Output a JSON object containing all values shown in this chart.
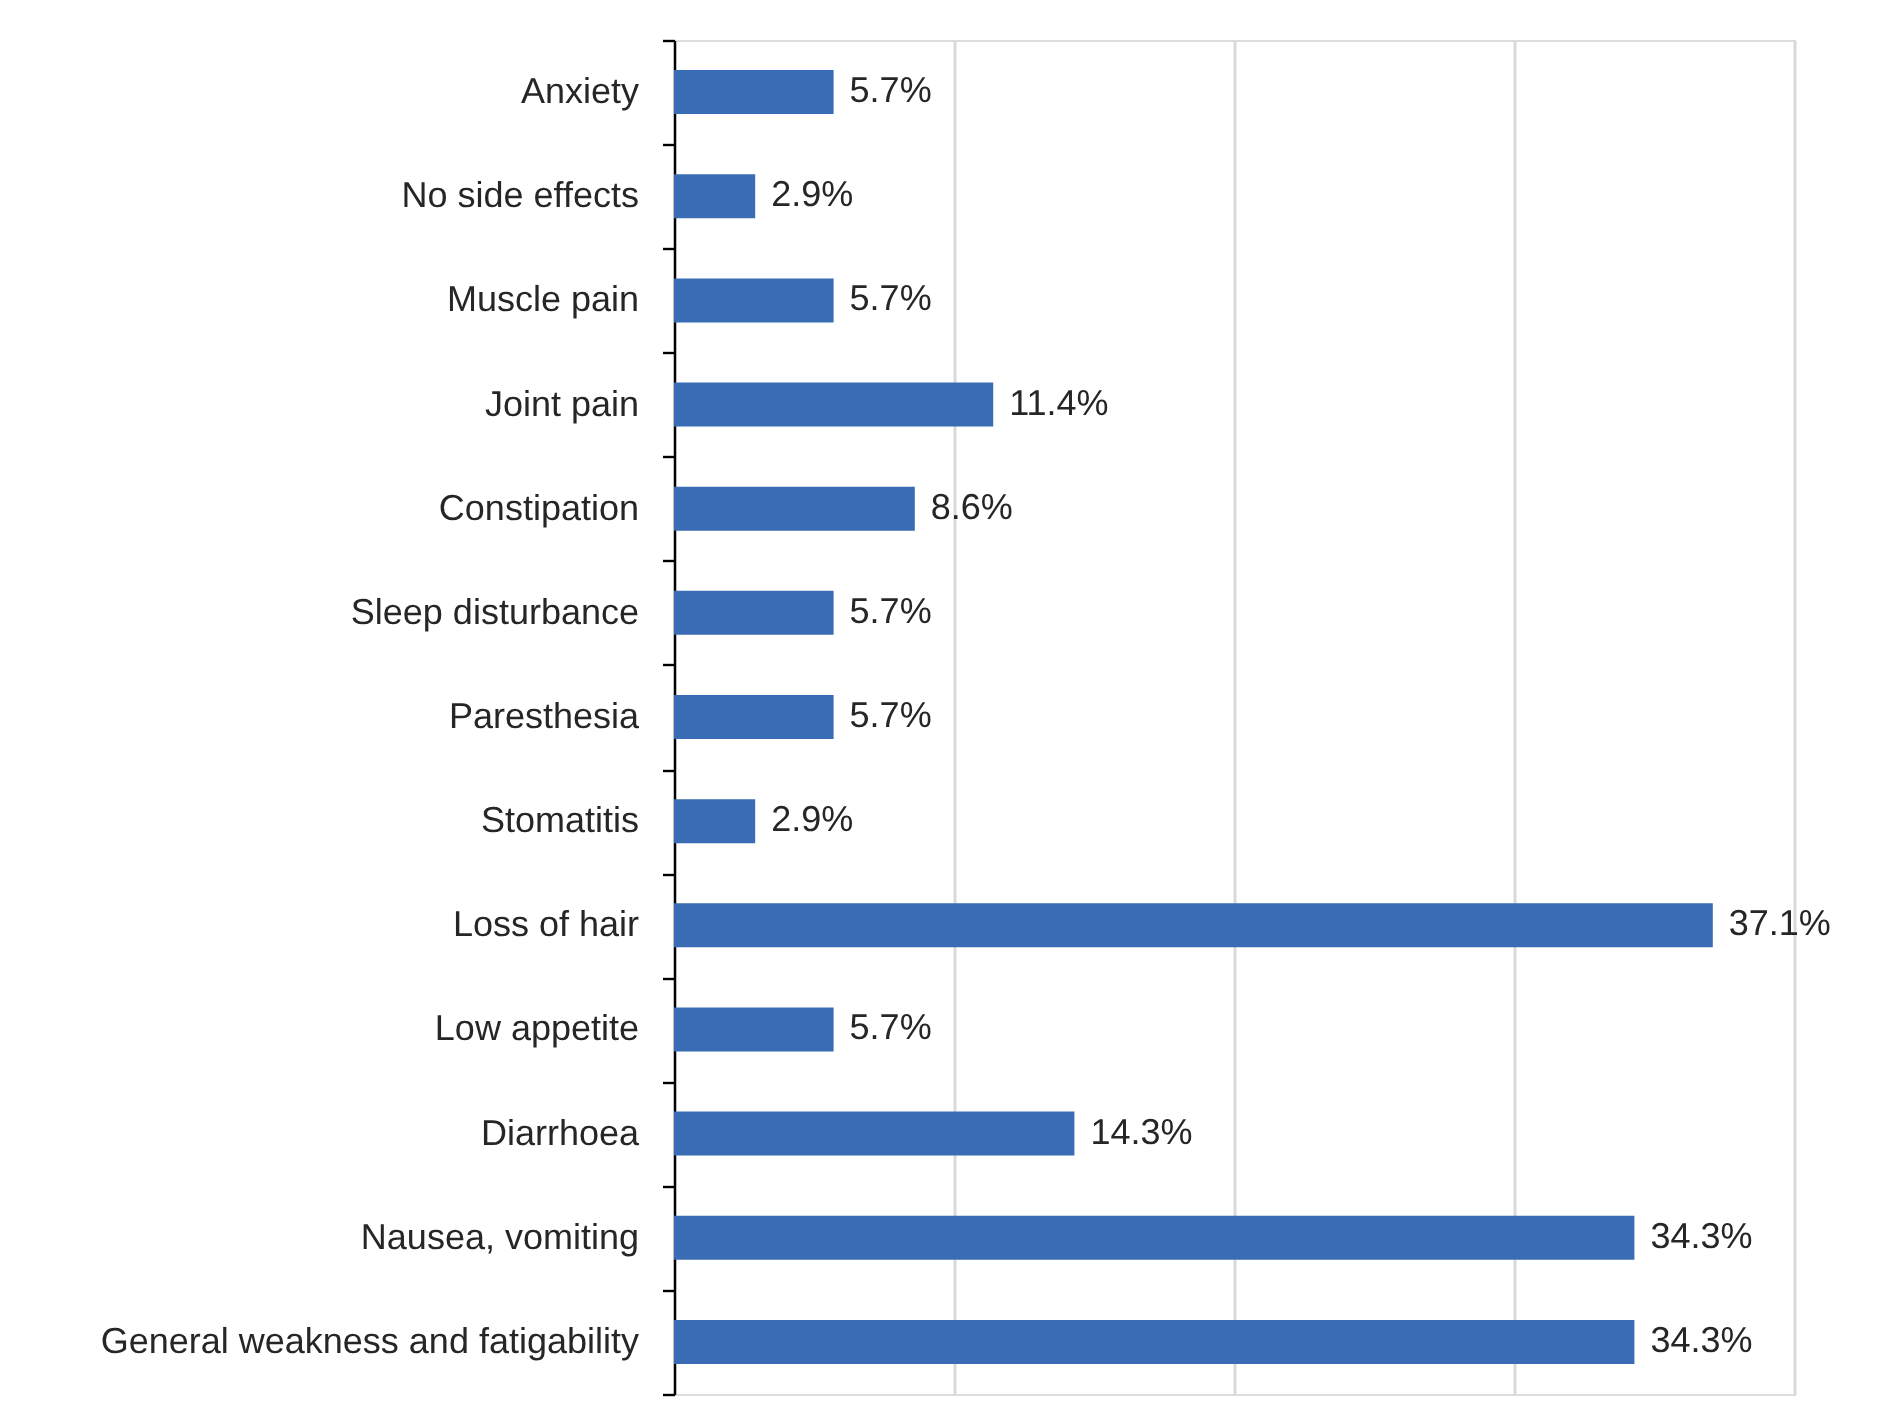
{
  "chart_data": {
    "type": "bar",
    "orientation": "horizontal",
    "categories": [
      "Anxiety",
      "No side effects",
      "Muscle pain",
      "Joint pain",
      "Constipation",
      "Sleep disturbance",
      "Paresthesia",
      "Stomatitis",
      "Loss of hair",
      "Low appetite",
      "Diarrhoea",
      "Nausea, vomiting",
      "General weakness and fatigability"
    ],
    "values": [
      5.7,
      2.9,
      5.7,
      11.4,
      8.6,
      5.7,
      5.7,
      2.9,
      37.1,
      5.7,
      14.3,
      34.3,
      34.3
    ],
    "value_labels": [
      "5.7%",
      "2.9%",
      "5.7%",
      "11.4%",
      "8.6%",
      "5.7%",
      "5.7%",
      "2.9%",
      "37.1%",
      "5.7%",
      "14.3%",
      "34.3%",
      "34.3%"
    ],
    "color": "#3a6cb5",
    "xlim": [
      0,
      40
    ],
    "xticks": [
      {
        "value": 0,
        "label": null
      },
      {
        "value": 10,
        "label": null
      },
      {
        "value": 20,
        "label": null
      },
      {
        "value": 30,
        "label": null
      },
      {
        "value": 40,
        "label": null
      }
    ],
    "grid": "x",
    "tick_labels": "y"
  }
}
